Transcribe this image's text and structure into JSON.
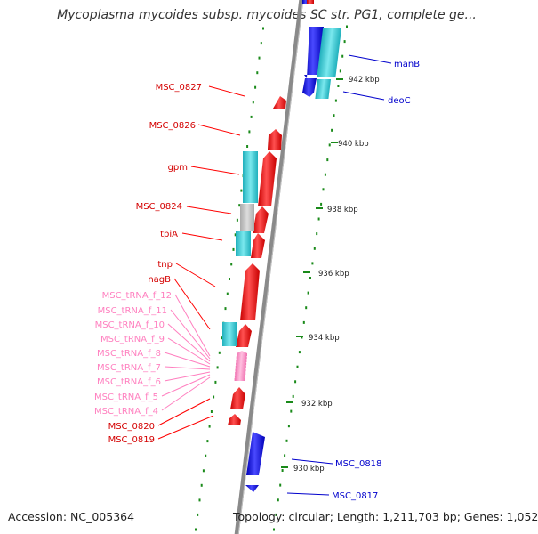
{
  "title": "Mycoplasma mycoides subsp. mycoides SC str. PG1, complete ge...",
  "footer": {
    "accession": "Accession: NC_005364",
    "summary": "Topology: circular; Length: 1,211,703 bp; Genes: 1,052"
  },
  "colors": {
    "reverse_strand_gene": "#ff0000",
    "forward_strand_gene": "#0000ff",
    "trna_gene": "#ff7fbf",
    "cds_track": "#38c8d0",
    "tick": "#1a8a1a",
    "backbone": "#8a8a8a"
  },
  "ticks": [
    "942 kbp",
    "940 kbp",
    "938 kbp",
    "936 kbp",
    "934 kbp",
    "932 kbp",
    "930 kbp"
  ],
  "left_labels": [
    {
      "text": "MSC_0827",
      "type": "gene"
    },
    {
      "text": "MSC_0826",
      "type": "gene"
    },
    {
      "text": "gpm",
      "type": "gene"
    },
    {
      "text": "MSC_0824",
      "type": "gene"
    },
    {
      "text": "tpiA",
      "type": "gene"
    },
    {
      "text": "tnp",
      "type": "gene"
    },
    {
      "text": "nagB",
      "type": "gene"
    },
    {
      "text": "MSC_tRNA_f_12",
      "type": "trna"
    },
    {
      "text": "MSC_tRNA_f_11",
      "type": "trna"
    },
    {
      "text": "MSC_tRNA_f_10",
      "type": "trna"
    },
    {
      "text": "MSC_tRNA_f_9",
      "type": "trna"
    },
    {
      "text": "MSC_tRNA_f_8",
      "type": "trna"
    },
    {
      "text": "MSC_tRNA_f_7",
      "type": "trna"
    },
    {
      "text": "MSC_tRNA_f_6",
      "type": "trna"
    },
    {
      "text": "MSC_tRNA_f_5",
      "type": "trna"
    },
    {
      "text": "MSC_tRNA_f_4",
      "type": "trna"
    },
    {
      "text": "MSC_0820",
      "type": "gene"
    },
    {
      "text": "MSC_0819",
      "type": "gene"
    }
  ],
  "right_labels": [
    {
      "text": "manB"
    },
    {
      "text": "deoC"
    },
    {
      "text": "MSC_0818"
    },
    {
      "text": "MSC_0817"
    }
  ]
}
